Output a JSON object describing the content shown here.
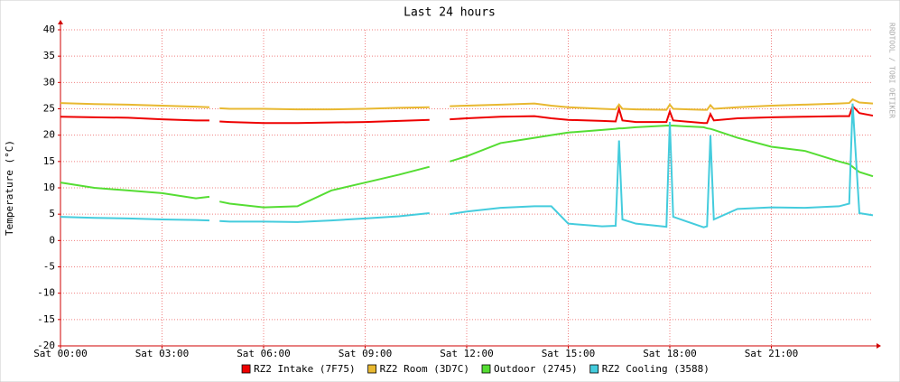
{
  "chart_data": {
    "type": "line",
    "title": "Last 24 hours",
    "y_label": "Temperature (°C)",
    "watermark": "RRDTOOL / TOBI OETIKER",
    "x": [
      0,
      1,
      2,
      3,
      4,
      4.4,
      4.5,
      4.7,
      5,
      6,
      7,
      8,
      9,
      10,
      10.9,
      11.2,
      11.5,
      12,
      13,
      14,
      14.5,
      15,
      16,
      16.4,
      16.5,
      16.6,
      17,
      17.9,
      18,
      18.1,
      19,
      19.1,
      19.2,
      19.3,
      20,
      21,
      22,
      23,
      23.3,
      23.4,
      23.6,
      24
    ],
    "xlim": [
      0,
      24
    ],
    "xticks": [
      {
        "value": 0,
        "label": "Sat 00:00"
      },
      {
        "value": 3,
        "label": "Sat 03:00"
      },
      {
        "value": 6,
        "label": "Sat 06:00"
      },
      {
        "value": 9,
        "label": "Sat 09:00"
      },
      {
        "value": 12,
        "label": "Sat 12:00"
      },
      {
        "value": 15,
        "label": "Sat 15:00"
      },
      {
        "value": 18,
        "label": "Sat 18:00"
      },
      {
        "value": 21,
        "label": "Sat 21:00"
      }
    ],
    "ylim": [
      -20,
      40
    ],
    "yticks": [
      -20,
      -15,
      -10,
      -5,
      0,
      5,
      10,
      15,
      20,
      25,
      30,
      35,
      40
    ],
    "grid": true,
    "series": [
      {
        "name": "RZ2 Intake (7F75)",
        "color": "#ee0000",
        "values": [
          23.5,
          23.4,
          23.3,
          23.0,
          22.8,
          22.8,
          null,
          22.6,
          22.5,
          22.3,
          22.3,
          22.4,
          22.5,
          22.7,
          22.9,
          null,
          23.0,
          23.2,
          23.5,
          23.6,
          23.2,
          22.9,
          22.7,
          22.6,
          25.0,
          22.8,
          22.5,
          22.5,
          24.5,
          22.8,
          22.3,
          22.3,
          24.0,
          22.8,
          23.2,
          23.4,
          23.5,
          23.6,
          23.6,
          25.5,
          24.2,
          23.7
        ]
      },
      {
        "name": "RZ2 Room (3D7C)",
        "color": "#e8b830",
        "values": [
          26.1,
          25.9,
          25.8,
          25.6,
          25.4,
          25.3,
          null,
          25.1,
          25.0,
          25.0,
          24.9,
          24.9,
          25.0,
          25.2,
          25.3,
          null,
          25.5,
          25.6,
          25.8,
          26.0,
          25.6,
          25.3,
          25.0,
          24.9,
          25.8,
          25.0,
          24.9,
          24.8,
          25.8,
          25.0,
          24.8,
          24.8,
          25.7,
          25.0,
          25.3,
          25.6,
          25.8,
          26.0,
          26.1,
          26.8,
          26.2,
          26.0
        ]
      },
      {
        "name": "Outdoor (2745)",
        "color": "#55dd33",
        "values": [
          11.0,
          10.0,
          9.5,
          9.0,
          8.0,
          8.3,
          null,
          7.4,
          7.0,
          6.3,
          6.5,
          9.5,
          11.0,
          12.5,
          14.0,
          null,
          15.0,
          16.0,
          18.5,
          19.5,
          20.0,
          20.5,
          21.0,
          21.2,
          21.3,
          21.3,
          21.5,
          21.8,
          21.8,
          21.8,
          21.5,
          21.3,
          21.2,
          21.0,
          19.5,
          17.8,
          17.0,
          15.0,
          14.5,
          14.0,
          13.0,
          12.2
        ]
      },
      {
        "name": "RZ2 Cooling (3588)",
        "color": "#44ccdd",
        "values": [
          4.5,
          4.3,
          4.2,
          4.0,
          3.9,
          3.8,
          null,
          3.7,
          3.6,
          3.6,
          3.5,
          3.8,
          4.2,
          4.6,
          5.2,
          null,
          5.0,
          5.5,
          6.2,
          6.5,
          6.5,
          3.2,
          2.7,
          2.8,
          19.0,
          4.0,
          3.2,
          2.6,
          22.5,
          4.5,
          2.5,
          2.7,
          20.0,
          4.0,
          6.0,
          6.3,
          6.2,
          6.5,
          7.0,
          26.0,
          5.2,
          4.8
        ]
      }
    ]
  }
}
